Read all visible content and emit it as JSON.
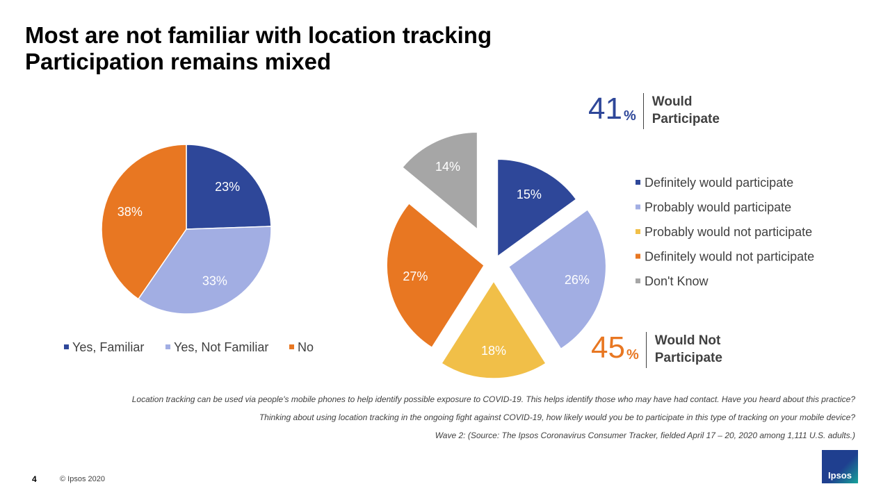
{
  "title": {
    "line1": "Most are not familiar with location tracking",
    "line2": "Participation remains mixed"
  },
  "chart_data": [
    {
      "type": "pie",
      "title": "",
      "categories": [
        "Yes, Familiar",
        "Yes, Not Familiar",
        "No"
      ],
      "values": [
        23,
        33,
        38
      ],
      "labels": [
        "23%",
        "33%",
        "38%"
      ],
      "colors": [
        "#2e4799",
        "#a2aee3",
        "#e87722"
      ],
      "legend_position": "bottom"
    },
    {
      "type": "pie",
      "title": "",
      "exploded": true,
      "categories": [
        "Definitely would participate",
        "Probably would participate",
        "Probably would not participate",
        "Definitely would not participate",
        "Don't Know"
      ],
      "values": [
        15,
        26,
        18,
        27,
        14
      ],
      "labels": [
        "15%",
        "26%",
        "18%",
        "27%",
        "14%"
      ],
      "colors": [
        "#2e4799",
        "#a2aee3",
        "#f1bf48",
        "#e87722",
        "#a6a6a6"
      ],
      "legend_position": "right"
    }
  ],
  "summary": {
    "participate": {
      "value": "41",
      "unit": "%",
      "label": "Would Participate",
      "color": "#2e4799"
    },
    "not_participate": {
      "value": "45",
      "unit": "%",
      "label": "Would Not Participate",
      "color": "#e87722"
    }
  },
  "notes": [
    "Location tracking can be used via people's mobile phones to help identify possible exposure to COVID-19. This helps identify those who may have had contact. Have you heard about this practice?",
    "Thinking about using location tracking in the ongoing fight against COVID-19, how likely would you be to participate in this type of tracking on your mobile device?",
    "Wave 2: (Source: The Ipsos Coronavirus Consumer Tracker, fielded April 17 – 20, 2020 among 1,111 U.S. adults.)"
  ],
  "footer": {
    "page_number": "4",
    "copyright": "© Ipsos 2020",
    "logo_text": "Ipsos"
  }
}
